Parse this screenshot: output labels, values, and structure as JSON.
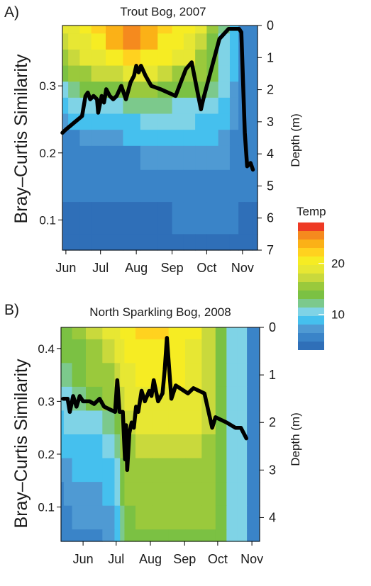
{
  "chart_data": [
    {
      "type": "line",
      "panel_label": "A)",
      "title": "Trout Bog, 2007",
      "ylabel": "Bray–Curtis Similarity",
      "ylabel_right": "Depth (m)",
      "x_ticks": [
        "Jun",
        "Jul",
        "Aug",
        "Sep",
        "Oct",
        "Nov"
      ],
      "x_tick_days": [
        3,
        33,
        64,
        95,
        125,
        156
      ],
      "xlim_days": [
        0,
        169
      ],
      "x_reference": "day 0 = 2007-05-29",
      "ylim": [
        0.055,
        0.39
      ],
      "y_ticks": [
        0.1,
        0.2,
        0.3
      ],
      "depth_ticks": [
        0,
        1,
        2,
        3,
        4,
        5,
        6,
        7
      ],
      "depth_lim": [
        0,
        7
      ],
      "series": [
        {
          "name": "Bray–Curtis similarity",
          "x_days": [
            0,
            3,
            10,
            17,
            20,
            22,
            24,
            27,
            30,
            31,
            34,
            36,
            38,
            41,
            44,
            47,
            51,
            53,
            55,
            59,
            62,
            64,
            66,
            68,
            72,
            77,
            85,
            98,
            107,
            112,
            120,
            122,
            136,
            144,
            147,
            153,
            155,
            158,
            160,
            163,
            165
          ],
          "values": [
            0.23,
            0.235,
            0.245,
            0.255,
            0.285,
            0.29,
            0.28,
            0.285,
            0.28,
            0.26,
            0.285,
            0.275,
            0.295,
            0.285,
            0.28,
            0.285,
            0.3,
            0.29,
            0.28,
            0.305,
            0.315,
            0.33,
            0.32,
            0.33,
            0.315,
            0.3,
            0.295,
            0.285,
            0.325,
            0.335,
            0.265,
            0.28,
            0.37,
            0.385,
            0.385,
            0.385,
            0.38,
            0.23,
            0.18,
            0.185,
            0.175
          ]
        }
      ],
      "heatmap": {
        "variable": "Temp",
        "depth_m": [
          0,
          0.5,
          1,
          1.5,
          2,
          2.5,
          3,
          3.5,
          4,
          5,
          6,
          7
        ],
        "x_days": [
          0,
          10,
          20,
          30,
          45,
          60,
          75,
          90,
          100,
          110,
          120,
          130,
          140,
          150,
          155,
          160,
          169
        ],
        "values": [
          [
            18,
            19,
            20,
            22,
            24,
            26,
            24,
            22,
            21,
            20,
            18,
            15,
            12,
            8,
            5,
            5,
            5
          ],
          [
            17,
            18,
            19,
            21,
            23,
            25,
            23,
            21,
            20,
            19,
            17,
            14,
            11,
            8,
            5,
            5,
            5
          ],
          [
            16,
            17,
            18,
            19,
            20,
            22,
            21,
            20,
            19,
            18,
            16,
            14,
            11,
            8,
            5,
            5,
            5
          ],
          [
            14,
            15,
            16,
            17,
            17,
            18,
            18,
            17,
            16,
            16,
            15,
            13,
            11,
            8,
            5,
            5,
            5
          ],
          [
            11,
            12,
            13,
            14,
            14,
            15,
            15,
            14,
            14,
            13,
            13,
            12,
            10,
            7,
            5,
            5,
            5
          ],
          [
            9,
            10,
            10,
            11,
            11,
            12,
            12,
            12,
            11,
            11,
            11,
            10,
            9,
            7,
            5,
            5,
            5
          ],
          [
            7,
            8,
            8,
            9,
            9,
            9,
            10,
            10,
            10,
            10,
            9,
            9,
            8,
            7,
            5,
            5,
            5
          ],
          [
            6,
            6,
            7,
            7,
            7,
            8,
            8,
            8,
            8,
            8,
            8,
            8,
            7,
            6,
            5,
            5,
            5
          ],
          [
            5,
            5,
            6,
            6,
            6,
            6,
            7,
            7,
            7,
            7,
            7,
            7,
            7,
            6,
            5,
            5,
            5
          ],
          [
            5,
            5,
            5,
            5,
            5,
            5,
            5,
            5,
            6,
            6,
            6,
            6,
            6,
            6,
            5,
            5,
            5
          ],
          [
            4,
            4,
            4,
            4,
            4,
            4,
            4,
            4,
            5,
            5,
            5,
            5,
            5,
            5,
            4,
            4,
            4
          ],
          [
            4,
            4,
            4,
            4,
            4,
            4,
            4,
            4,
            4,
            4,
            4,
            4,
            4,
            4,
            4,
            4,
            4
          ]
        ]
      }
    },
    {
      "type": "line",
      "panel_label": "B)",
      "title": "North Sparkling Bog, 2008",
      "ylabel": "Bray–Curtis Similarity",
      "ylabel_right": "Depth (m)",
      "x_ticks": [
        "Jun",
        "Jul",
        "Aug",
        "Sep",
        "Oct",
        "Nov"
      ],
      "x_tick_days": [
        20,
        50,
        81,
        112,
        142,
        173
      ],
      "xlim_days": [
        0,
        180
      ],
      "x_reference": "day 0 = 2008-05-12",
      "ylim": [
        0.035,
        0.44
      ],
      "y_ticks": [
        0.1,
        0.2,
        0.3,
        0.4
      ],
      "depth_ticks": [
        0,
        1,
        2,
        3,
        4
      ],
      "depth_lim": [
        0,
        4.5
      ],
      "series": [
        {
          "name": "Bray–Curtis similarity",
          "x_days": [
            2,
            6,
            8,
            11,
            14,
            17,
            20,
            26,
            30,
            35,
            39,
            44,
            49,
            51,
            53,
            56,
            58,
            59,
            60,
            62,
            64,
            66,
            68,
            70,
            73,
            76,
            80,
            82,
            84,
            88,
            92,
            94,
            96,
            100,
            104,
            115,
            120,
            130,
            137,
            140,
            150,
            158,
            163,
            168
          ],
          "values": [
            0.305,
            0.305,
            0.28,
            0.31,
            0.29,
            0.31,
            0.3,
            0.3,
            0.295,
            0.305,
            0.29,
            0.285,
            0.28,
            0.34,
            0.28,
            0.28,
            0.19,
            0.255,
            0.17,
            0.24,
            0.26,
            0.25,
            0.29,
            0.28,
            0.32,
            0.3,
            0.32,
            0.31,
            0.34,
            0.3,
            0.315,
            0.36,
            0.42,
            0.305,
            0.33,
            0.315,
            0.325,
            0.315,
            0.25,
            0.27,
            0.26,
            0.25,
            0.25,
            0.23
          ]
        }
      ],
      "heatmap": {
        "variable": "Temp",
        "depth_m": [
          0,
          0.5,
          1,
          1.5,
          2,
          2.5,
          3,
          3.5,
          4,
          4.5
        ],
        "x_days": [
          0,
          5,
          15,
          30,
          45,
          52,
          55,
          60,
          75,
          90,
          105,
          120,
          135,
          145,
          155,
          165,
          172,
          180
        ],
        "values": [
          [
            14,
            14,
            15,
            17,
            18,
            19,
            20,
            21,
            22,
            22,
            21,
            20,
            17,
            14,
            11,
            10,
            6,
            5
          ],
          [
            13,
            13,
            14,
            16,
            17,
            18,
            19,
            20,
            21,
            21,
            20,
            19,
            17,
            14,
            11,
            10,
            6,
            5
          ],
          [
            12,
            12,
            13,
            15,
            16,
            17,
            18,
            19,
            20,
            20,
            20,
            19,
            17,
            14,
            11,
            10,
            6,
            5
          ],
          [
            11,
            11,
            12,
            13,
            15,
            16,
            17,
            18,
            19,
            19,
            19,
            18,
            17,
            14,
            11,
            10,
            6,
            5
          ],
          [
            9,
            10,
            10,
            11,
            12,
            14,
            16,
            17,
            18,
            18,
            18,
            18,
            17,
            14,
            11,
            10,
            6,
            5
          ],
          [
            8,
            8,
            9,
            9,
            10,
            12,
            15,
            16,
            17,
            17,
            17,
            17,
            16,
            14,
            11,
            10,
            6,
            5
          ],
          [
            7,
            7,
            8,
            8,
            9,
            11,
            14,
            15,
            16,
            16,
            16,
            16,
            16,
            14,
            11,
            10,
            6,
            5
          ],
          [
            6,
            7,
            7,
            7,
            8,
            10,
            13,
            15,
            15,
            15,
            15,
            15,
            15,
            14,
            11,
            10,
            6,
            5
          ],
          [
            5,
            6,
            7,
            7,
            7,
            9,
            12,
            14,
            15,
            15,
            15,
            15,
            15,
            14,
            11,
            10,
            6,
            5
          ],
          [
            5,
            6,
            6,
            6,
            7,
            9,
            12,
            14,
            14,
            14,
            14,
            14,
            14,
            13,
            11,
            10,
            6,
            5
          ]
        ]
      }
    }
  ],
  "legend": {
    "title": "Temp",
    "range": [
      3,
      28
    ],
    "ticks": [
      10,
      20
    ]
  },
  "palette": {
    "line": "#000000",
    "levels": [
      "#2f6fb8",
      "#3a84c8",
      "#4f9ad3",
      "#45c0ee",
      "#7fd3e6",
      "#7cc98c",
      "#7bc143",
      "#9ac93c",
      "#c9d93c",
      "#e7e733",
      "#f6ec23",
      "#ffd21f",
      "#fbb117",
      "#f58a1e",
      "#ee3a24"
    ]
  }
}
